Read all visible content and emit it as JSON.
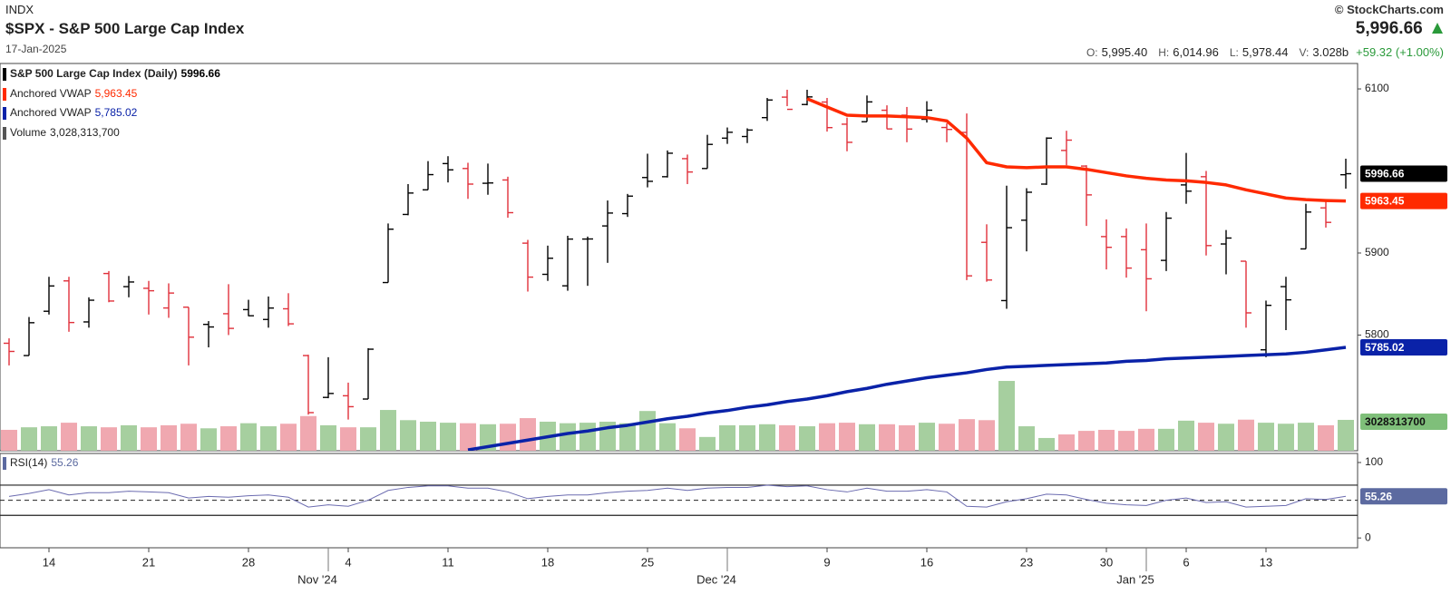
{
  "header": {
    "exchange": "INDX",
    "title": "$SPX - S&P 500 Large Cap Index",
    "date": "17-Jan-2025",
    "copyright": "© StockCharts.com",
    "last": "5,996.66",
    "stats": [
      {
        "label": "O:",
        "value": "5,995.40"
      },
      {
        "label": "H:",
        "value": "6,014.96"
      },
      {
        "label": "L:",
        "value": "5,978.44"
      },
      {
        "label": "V:",
        "value": "3.028b"
      }
    ],
    "change": "+59.32 (+1.00%)"
  },
  "chart_data": [
    {
      "type": "ohlc",
      "price_name": "S&P 500 Large Cap Index (Daily)",
      "categories": [
        "2024-10-10",
        "2024-10-11",
        "2024-10-14",
        "2024-10-15",
        "2024-10-16",
        "2024-10-17",
        "2024-10-18",
        "2024-10-21",
        "2024-10-22",
        "2024-10-23",
        "2024-10-24",
        "2024-10-25",
        "2024-10-28",
        "2024-10-29",
        "2024-10-30",
        "2024-10-31",
        "2024-11-01",
        "2024-11-04",
        "2024-11-05",
        "2024-11-06",
        "2024-11-07",
        "2024-11-08",
        "2024-11-11",
        "2024-11-12",
        "2024-11-13",
        "2024-11-14",
        "2024-11-15",
        "2024-11-18",
        "2024-11-19",
        "2024-11-20",
        "2024-11-21",
        "2024-11-22",
        "2024-11-25",
        "2024-11-26",
        "2024-11-27",
        "2024-11-29",
        "2024-12-02",
        "2024-12-03",
        "2024-12-04",
        "2024-12-05",
        "2024-12-06",
        "2024-12-09",
        "2024-12-10",
        "2024-12-11",
        "2024-12-12",
        "2024-12-13",
        "2024-12-16",
        "2024-12-17",
        "2024-12-18",
        "2024-12-19",
        "2024-12-20",
        "2024-12-23",
        "2024-12-24",
        "2024-12-26",
        "2024-12-27",
        "2024-12-30",
        "2024-12-31",
        "2025-01-02",
        "2025-01-03",
        "2025-01-06",
        "2025-01-07",
        "2025-01-08",
        "2025-01-10",
        "2025-01-13",
        "2025-01-14",
        "2025-01-15",
        "2025-01-16",
        "2025-01-17"
      ],
      "open": [
        5790,
        5775,
        5829,
        5866,
        5816,
        5875,
        5859,
        5857,
        5833,
        5834,
        5813,
        5826,
        5831,
        5819,
        5832,
        5775,
        5724,
        5726,
        5722,
        5864,
        5947,
        5977,
        6009,
        6003,
        5985,
        5989,
        5912,
        5874,
        5860,
        5917,
        5933,
        5948,
        5992,
        5993,
        6015,
        6003,
        6040,
        6042,
        6065,
        6090,
        6081,
        6084,
        6057,
        6060,
        6074,
        6068,
        6063,
        6053,
        6047,
        5913,
        5842,
        5940,
        5984,
        6025,
        6006,
        5920,
        5920,
        5904,
        5891,
        5983,
        5993,
        5911,
        5890,
        5782,
        5859,
        5905,
        5955,
        5995.4
      ],
      "high": [
        5796,
        5822,
        5871,
        5871,
        5846,
        5878,
        5872,
        5866,
        5863,
        5834,
        5817,
        5862,
        5843,
        5847,
        5851,
        5776,
        5773,
        5742,
        5784,
        5936,
        5984,
        6012,
        6018,
        6010,
        6009,
        5993,
        5916,
        5909,
        5921,
        5920,
        5964,
        5972,
        6021,
        6025,
        6020,
        6044,
        6053,
        6052,
        6089,
        6099,
        6099,
        6089,
        6065,
        6092,
        6080,
        6078,
        6085,
        6058,
        6070,
        5935,
        5982,
        5979,
        6041,
        6049,
        6007,
        5941,
        5930,
        5936,
        5950,
        6022,
        6000,
        5928,
        5890,
        5842,
        5871,
        5960,
        5964,
        6014.96
      ],
      "low": [
        5763,
        5775,
        5825,
        5804,
        5809,
        5840,
        5846,
        5825,
        5821,
        5763,
        5785,
        5800,
        5823,
        5809,
        5811,
        5703,
        5723,
        5697,
        5722,
        5864,
        5946,
        5977,
        5986,
        5966,
        5971,
        5943,
        5853,
        5866,
        5854,
        5860,
        5888,
        5944,
        5980,
        5992,
        5984,
        6003,
        6033,
        6034,
        6061,
        6079,
        6080,
        6048,
        6024,
        6060,
        6051,
        6035,
        6059,
        6035,
        5867,
        5865,
        5832,
        5902,
        5983,
        6007,
        5933,
        5880,
        5870,
        5829,
        5878,
        5960,
        5897,
        5874,
        5809,
        5773,
        5806,
        5905,
        5931,
        5978.44
      ],
      "close": [
        5780.05,
        5815.03,
        5859.85,
        5815.26,
        5842.47,
        5841.47,
        5864.67,
        5853.98,
        5851.2,
        5797.42,
        5809.86,
        5808.12,
        5823.52,
        5832.92,
        5813.67,
        5705.45,
        5728.8,
        5712.69,
        5782.76,
        5929.04,
        5973.1,
        5995.54,
        6001.35,
        5983.99,
        5985.38,
        5949.17,
        5870.62,
        5893.62,
        5916.98,
        5917.11,
        5948.71,
        5969.34,
        5987.37,
        6021.63,
        5998.74,
        6032.38,
        6047.15,
        6049.88,
        6086.49,
        6075.11,
        6090.27,
        6052.85,
        6034.91,
        6084.19,
        6051.25,
        6051.09,
        6074.08,
        6050.61,
        5872.16,
        5867.08,
        5930.85,
        5974.07,
        6040.04,
        6037.59,
        5970.84,
        5906.94,
        5881.63,
        5868.55,
        5942.47,
        5975.38,
        5909.03,
        5918.25,
        5827.04,
        5836.22,
        5842.91,
        5949.91,
        5937.34,
        5996.66
      ],
      "up_color": "#000000",
      "down_color": "#e0303a",
      "ylim": [
        5659,
        6131
      ],
      "yticks": [
        5800,
        5900,
        6100
      ],
      "xticks": [
        {
          "value": "2024-10-14",
          "label": "14"
        },
        {
          "value": "2024-10-21",
          "label": "21"
        },
        {
          "value": "2024-10-28",
          "label": "28"
        },
        {
          "value": "2024-11-04",
          "label": "4"
        },
        {
          "value": "2024-11-11",
          "label": "11"
        },
        {
          "value": "2024-11-18",
          "label": "18"
        },
        {
          "value": "2024-11-25",
          "label": "25"
        },
        {
          "value": "2024-12-09",
          "label": "9"
        },
        {
          "value": "2024-12-16",
          "label": "16"
        },
        {
          "value": "2024-12-23",
          "label": "23"
        },
        {
          "value": "2024-12-30",
          "label": "30"
        },
        {
          "value": "2025-01-06",
          "label": "6"
        },
        {
          "value": "2025-01-13",
          "label": "13"
        }
      ],
      "xticks_major": [
        {
          "value": "2024-11-01",
          "label": "Nov '24"
        },
        {
          "value": "2024-12-02",
          "label": "Dec '24"
        },
        {
          "value": "2025-01-02",
          "label": "Jan '25"
        }
      ],
      "series": [
        {
          "name": "Anchored VWAP",
          "color": "#ff2a00",
          "value_label": "5,963.45",
          "values": [
            null,
            null,
            null,
            null,
            null,
            null,
            null,
            null,
            null,
            null,
            null,
            null,
            null,
            null,
            null,
            null,
            null,
            null,
            null,
            null,
            null,
            null,
            null,
            null,
            null,
            null,
            null,
            null,
            null,
            null,
            null,
            null,
            null,
            null,
            null,
            null,
            null,
            null,
            null,
            null,
            6088,
            6078,
            6068,
            6067,
            6067,
            6066,
            6065,
            6061,
            6040,
            6010,
            6005,
            6004,
            6005,
            6005,
            6002,
            5998,
            5994,
            5991,
            5989,
            5988,
            5986,
            5983,
            5977,
            5972,
            5967,
            5965,
            5964,
            5963.45
          ]
        },
        {
          "name": "Anchored VWAP",
          "color": "#0a22a8",
          "value_label": "5,785.02",
          "values": [
            null,
            null,
            null,
            null,
            null,
            null,
            null,
            null,
            null,
            null,
            null,
            null,
            null,
            null,
            null,
            null,
            null,
            null,
            null,
            null,
            null,
            null,
            null,
            5660,
            5664,
            5668,
            5672,
            5676,
            5680,
            5683,
            5687,
            5690,
            5694,
            5698,
            5701,
            5705,
            5708,
            5712,
            5715,
            5719,
            5722,
            5726,
            5731,
            5735,
            5740,
            5744,
            5748,
            5751,
            5754,
            5758,
            5761,
            5762,
            5763,
            5764,
            5765,
            5766,
            5768,
            5769,
            5771,
            5772,
            5773,
            5774,
            5775,
            5776,
            5777,
            5779,
            5782,
            5785.02
          ]
        }
      ],
      "volume": {
        "name": "Volume",
        "color": "#555555",
        "value_label": "3,028,313,700",
        "up_color": "#a6cf9f",
        "down_color": "#f0a8b0",
        "tag_color": "#7fbf7a",
        "ylim": [
          0,
          38000000000
        ],
        "values": [
          2050000000,
          2300000000,
          2400000000,
          2750000000,
          2400000000,
          2300000000,
          2500000000,
          2300000000,
          2500000000,
          2650000000,
          2200000000,
          2400000000,
          2700000000,
          2400000000,
          2650000000,
          3400000000,
          2500000000,
          2300000000,
          2300000000,
          4000000000,
          3000000000,
          2850000000,
          2750000000,
          2700000000,
          2600000000,
          2650000000,
          3200000000,
          2850000000,
          2700000000,
          2750000000,
          2850000000,
          2700000000,
          3900000000,
          2700000000,
          2200000000,
          1350000000,
          2500000000,
          2500000000,
          2600000000,
          2500000000,
          2400000000,
          2700000000,
          2750000000,
          2600000000,
          2600000000,
          2500000000,
          2750000000,
          2650000000,
          3100000000,
          3000000000,
          6850000000,
          2400000000,
          1250000000,
          1600000000,
          1950000000,
          2050000000,
          1950000000,
          2150000000,
          2150000000,
          2950000000,
          2750000000,
          2650000000,
          3050000000,
          2750000000,
          2650000000,
          2750000000,
          2500000000,
          3028313700
        ]
      }
    },
    {
      "type": "line",
      "name": "RSI(14)",
      "color": "#6b6bb0",
      "tag_color": "#5c6aa0",
      "values": [
        55,
        59,
        64,
        57,
        60,
        60,
        62,
        61,
        60,
        53,
        55,
        54,
        56,
        57,
        54,
        41,
        44,
        42,
        50,
        63,
        67,
        69,
        69,
        66,
        66,
        61,
        52,
        55,
        57,
        57,
        60,
        62,
        63,
        66,
        63,
        66,
        67,
        67,
        70,
        68,
        69,
        64,
        61,
        66,
        62,
        62,
        64,
        61,
        42,
        41,
        48,
        52,
        58,
        57,
        51,
        46,
        44,
        43,
        50,
        53,
        47,
        48,
        41,
        42,
        43,
        52,
        51,
        55.26
      ],
      "ylim": [
        -13,
        112
      ],
      "yticks": [
        0,
        100
      ],
      "levels": [
        30,
        70
      ],
      "center_line": 50
    }
  ]
}
